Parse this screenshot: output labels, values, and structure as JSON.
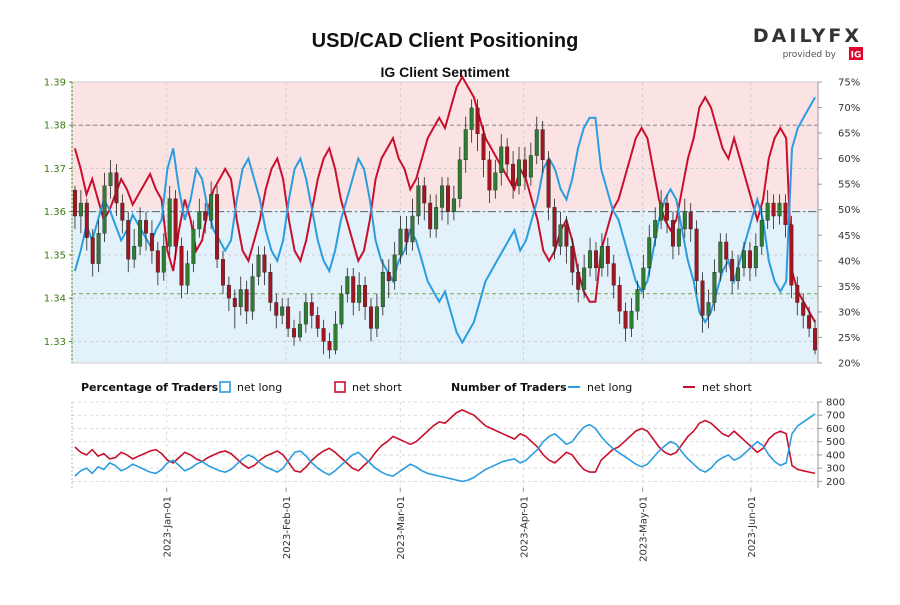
{
  "title": "USD/CAD Client Positioning",
  "subtitle": "IG Client Sentiment",
  "brand": {
    "name": "DAILYFX",
    "sub": "provided by",
    "ig": "IG",
    "color_accent": "#e4002b"
  },
  "colors": {
    "long": "#2a9de0",
    "short": "#c8102e",
    "up": "#2e7d32",
    "down": "#a31621",
    "wick": "#222222",
    "bg_short": "#fbe3e3",
    "bg_long": "#e3f1fb",
    "green_axis": "#4a8a1a"
  },
  "legend": {
    "pct_label": "Percentage of Traders",
    "num_label": "Number of Traders",
    "net_long": "net long",
    "net_short": "net short"
  },
  "chart_data": [
    {
      "type": "candlestick+line",
      "name": "price-and-percentage",
      "price_axis": {
        "ylim": [
          1.325,
          1.39
        ],
        "ticks": [
          1.33,
          1.34,
          1.35,
          1.36,
          1.37,
          1.38,
          1.39
        ]
      },
      "pct_axis": {
        "ylim": [
          20,
          75
        ],
        "ticks": [
          "20%",
          "25%",
          "30%",
          "35%",
          "40%",
          "45%",
          "50%",
          "55%",
          "60%",
          "65%",
          "70%",
          "75%"
        ]
      },
      "reference_lines": [
        1.38,
        1.36,
        1.341
      ],
      "x_ticks": [
        "2023-Jan-01",
        "2023-Feb-01",
        "2023-Mar-01",
        "2023-Apr-01",
        "2023-May-01",
        "2023-Jun-01"
      ],
      "candles": [
        [
          1.365,
          1.359,
          1.366,
          1.356
        ],
        [
          1.359,
          1.362,
          1.365,
          1.355
        ],
        [
          1.362,
          1.354,
          1.363,
          1.351
        ],
        [
          1.354,
          1.348,
          1.356,
          1.345
        ],
        [
          1.348,
          1.355,
          1.358,
          1.346
        ],
        [
          1.355,
          1.366,
          1.369,
          1.353
        ],
        [
          1.366,
          1.369,
          1.372,
          1.363
        ],
        [
          1.369,
          1.362,
          1.371,
          1.359
        ],
        [
          1.362,
          1.358,
          1.364,
          1.355
        ],
        [
          1.358,
          1.349,
          1.36,
          1.346
        ],
        [
          1.349,
          1.352,
          1.356,
          1.347
        ],
        [
          1.352,
          1.358,
          1.361,
          1.35
        ],
        [
          1.358,
          1.355,
          1.36,
          1.351
        ],
        [
          1.355,
          1.351,
          1.358,
          1.348
        ],
        [
          1.351,
          1.346,
          1.353,
          1.343
        ],
        [
          1.346,
          1.352,
          1.355,
          1.344
        ],
        [
          1.352,
          1.363,
          1.366,
          1.35
        ],
        [
          1.363,
          1.352,
          1.365,
          1.349
        ],
        [
          1.352,
          1.343,
          1.354,
          1.34
        ],
        [
          1.343,
          1.348,
          1.351,
          1.341
        ],
        [
          1.348,
          1.356,
          1.358,
          1.346
        ],
        [
          1.356,
          1.36,
          1.363,
          1.354
        ],
        [
          1.36,
          1.358,
          1.362,
          1.355
        ],
        [
          1.358,
          1.364,
          1.367,
          1.356
        ],
        [
          1.364,
          1.349,
          1.366,
          1.347
        ],
        [
          1.349,
          1.343,
          1.351,
          1.341
        ],
        [
          1.343,
          1.34,
          1.345,
          1.337
        ],
        [
          1.34,
          1.338,
          1.342,
          1.333
        ],
        [
          1.338,
          1.342,
          1.345,
          1.336
        ],
        [
          1.342,
          1.337,
          1.344,
          1.334
        ],
        [
          1.337,
          1.345,
          1.348,
          1.335
        ],
        [
          1.345,
          1.35,
          1.352,
          1.343
        ],
        [
          1.35,
          1.346,
          1.352,
          1.343
        ],
        [
          1.346,
          1.339,
          1.348,
          1.337
        ],
        [
          1.339,
          1.336,
          1.341,
          1.333
        ],
        [
          1.336,
          1.338,
          1.34,
          1.334
        ],
        [
          1.338,
          1.333,
          1.34,
          1.331
        ],
        [
          1.333,
          1.331,
          1.335,
          1.329
        ],
        [
          1.331,
          1.334,
          1.337,
          1.33
        ],
        [
          1.334,
          1.339,
          1.341,
          1.332
        ],
        [
          1.339,
          1.336,
          1.341,
          1.333
        ],
        [
          1.336,
          1.333,
          1.338,
          1.331
        ],
        [
          1.333,
          1.33,
          1.335,
          1.327
        ],
        [
          1.33,
          1.328,
          1.332,
          1.326
        ],
        [
          1.328,
          1.334,
          1.337,
          1.327
        ],
        [
          1.334,
          1.341,
          1.343,
          1.333
        ],
        [
          1.341,
          1.345,
          1.347,
          1.339
        ],
        [
          1.345,
          1.339,
          1.347,
          1.336
        ],
        [
          1.339,
          1.343,
          1.346,
          1.337
        ],
        [
          1.343,
          1.338,
          1.345,
          1.335
        ],
        [
          1.338,
          1.333,
          1.34,
          1.33
        ],
        [
          1.333,
          1.338,
          1.341,
          1.331
        ],
        [
          1.338,
          1.346,
          1.349,
          1.336
        ],
        [
          1.346,
          1.344,
          1.349,
          1.34
        ],
        [
          1.344,
          1.35,
          1.353,
          1.342
        ],
        [
          1.35,
          1.356,
          1.359,
          1.348
        ],
        [
          1.356,
          1.353,
          1.359,
          1.35
        ],
        [
          1.353,
          1.359,
          1.363,
          1.351
        ],
        [
          1.359,
          1.366,
          1.368,
          1.357
        ],
        [
          1.366,
          1.362,
          1.368,
          1.358
        ],
        [
          1.362,
          1.356,
          1.364,
          1.354
        ],
        [
          1.356,
          1.361,
          1.364,
          1.354
        ],
        [
          1.361,
          1.366,
          1.368,
          1.358
        ],
        [
          1.366,
          1.36,
          1.368,
          1.357
        ],
        [
          1.36,
          1.363,
          1.366,
          1.358
        ],
        [
          1.363,
          1.372,
          1.375,
          1.361
        ],
        [
          1.372,
          1.379,
          1.382,
          1.369
        ],
        [
          1.379,
          1.384,
          1.386,
          1.376
        ],
        [
          1.384,
          1.378,
          1.386,
          1.374
        ],
        [
          1.378,
          1.372,
          1.38,
          1.368
        ],
        [
          1.372,
          1.365,
          1.374,
          1.362
        ],
        [
          1.365,
          1.369,
          1.372,
          1.363
        ],
        [
          1.369,
          1.375,
          1.378,
          1.366
        ],
        [
          1.375,
          1.371,
          1.377,
          1.368
        ],
        [
          1.371,
          1.366,
          1.374,
          1.363
        ],
        [
          1.366,
          1.372,
          1.375,
          1.364
        ],
        [
          1.372,
          1.368,
          1.375,
          1.365
        ],
        [
          1.368,
          1.373,
          1.376,
          1.366
        ],
        [
          1.373,
          1.379,
          1.382,
          1.371
        ],
        [
          1.379,
          1.372,
          1.381,
          1.369
        ],
        [
          1.372,
          1.361,
          1.374,
          1.358
        ],
        [
          1.361,
          1.352,
          1.363,
          1.349
        ],
        [
          1.352,
          1.357,
          1.36,
          1.35
        ],
        [
          1.357,
          1.352,
          1.359,
          1.348
        ],
        [
          1.352,
          1.346,
          1.354,
          1.343
        ],
        [
          1.346,
          1.342,
          1.348,
          1.339
        ],
        [
          1.342,
          1.347,
          1.35,
          1.34
        ],
        [
          1.347,
          1.351,
          1.354,
          1.345
        ],
        [
          1.351,
          1.347,
          1.353,
          1.344
        ],
        [
          1.347,
          1.352,
          1.355,
          1.345
        ],
        [
          1.352,
          1.348,
          1.354,
          1.345
        ],
        [
          1.348,
          1.343,
          1.35,
          1.34
        ],
        [
          1.343,
          1.337,
          1.345,
          1.334
        ],
        [
          1.337,
          1.333,
          1.339,
          1.33
        ],
        [
          1.333,
          1.337,
          1.34,
          1.331
        ],
        [
          1.337,
          1.342,
          1.344,
          1.335
        ],
        [
          1.342,
          1.347,
          1.35,
          1.34
        ],
        [
          1.347,
          1.354,
          1.357,
          1.345
        ],
        [
          1.354,
          1.358,
          1.361,
          1.352
        ],
        [
          1.358,
          1.362,
          1.365,
          1.356
        ],
        [
          1.362,
          1.358,
          1.364,
          1.355
        ],
        [
          1.358,
          1.352,
          1.36,
          1.349
        ],
        [
          1.352,
          1.356,
          1.359,
          1.35
        ],
        [
          1.356,
          1.36,
          1.363,
          1.354
        ],
        [
          1.36,
          1.356,
          1.362,
          1.353
        ],
        [
          1.356,
          1.344,
          1.358,
          1.341
        ],
        [
          1.344,
          1.336,
          1.346,
          1.332
        ],
        [
          1.336,
          1.339,
          1.342,
          1.333
        ],
        [
          1.339,
          1.346,
          1.349,
          1.337
        ],
        [
          1.346,
          1.353,
          1.355,
          1.344
        ],
        [
          1.353,
          1.349,
          1.355,
          1.346
        ],
        [
          1.349,
          1.344,
          1.351,
          1.341
        ],
        [
          1.344,
          1.347,
          1.35,
          1.342
        ],
        [
          1.347,
          1.351,
          1.353,
          1.345
        ],
        [
          1.351,
          1.347,
          1.353,
          1.344
        ],
        [
          1.347,
          1.352,
          1.355,
          1.345
        ],
        [
          1.352,
          1.358,
          1.361,
          1.35
        ],
        [
          1.358,
          1.362,
          1.365,
          1.356
        ],
        [
          1.362,
          1.359,
          1.364,
          1.356
        ],
        [
          1.359,
          1.362,
          1.364,
          1.357
        ],
        [
          1.362,
          1.357,
          1.364,
          1.354
        ],
        [
          1.357,
          1.343,
          1.359,
          1.34
        ],
        [
          1.343,
          1.339,
          1.345,
          1.336
        ],
        [
          1.339,
          1.336,
          1.341,
          1.333
        ],
        [
          1.336,
          1.333,
          1.338,
          1.331
        ],
        [
          1.333,
          1.328,
          1.335,
          1.327
        ]
      ],
      "pct_net_long": [
        38,
        42,
        47,
        44,
        48,
        52,
        50,
        47,
        44,
        46,
        49,
        47,
        45,
        43,
        46,
        48,
        58,
        62,
        54,
        48,
        52,
        58,
        56,
        50,
        46,
        44,
        42,
        44,
        52,
        58,
        60,
        56,
        52,
        46,
        42,
        40,
        44,
        52,
        58,
        60,
        56,
        50,
        44,
        40,
        38,
        42,
        48,
        52,
        56,
        60,
        58,
        52,
        44,
        40,
        38,
        36,
        40,
        42,
        46,
        44,
        40,
        36,
        34,
        32,
        34,
        30,
        26,
        24,
        26,
        28,
        32,
        36,
        38,
        40,
        42,
        44,
        46,
        42,
        44,
        48,
        52,
        58,
        60,
        58,
        54,
        52,
        56,
        62,
        66,
        68,
        68,
        58,
        54,
        50,
        48,
        44,
        40,
        36,
        34,
        36,
        42,
        48,
        52,
        54,
        52,
        46,
        40,
        36,
        30,
        28,
        30,
        34,
        38,
        40,
        36,
        40,
        44,
        48,
        52,
        48,
        40,
        36,
        34,
        36,
        62,
        66,
        68,
        70,
        72
      ],
      "pct_net_short": [
        62,
        58,
        53,
        56,
        52,
        48,
        50,
        53,
        56,
        54,
        51,
        53,
        55,
        57,
        54,
        52,
        42,
        38,
        46,
        52,
        48,
        42,
        44,
        50,
        54,
        56,
        58,
        56,
        48,
        42,
        40,
        44,
        48,
        54,
        58,
        60,
        56,
        48,
        42,
        40,
        44,
        50,
        56,
        60,
        62,
        58,
        52,
        48,
        44,
        40,
        42,
        48,
        56,
        60,
        62,
        64,
        60,
        58,
        54,
        56,
        60,
        64,
        66,
        68,
        66,
        70,
        74,
        76,
        74,
        72,
        68,
        64,
        62,
        60,
        58,
        56,
        54,
        58,
        56,
        52,
        48,
        42,
        40,
        42,
        46,
        48,
        44,
        38,
        34,
        32,
        32,
        42,
        46,
        50,
        52,
        56,
        60,
        64,
        66,
        64,
        58,
        52,
        48,
        46,
        48,
        54,
        60,
        64,
        70,
        72,
        70,
        66,
        62,
        60,
        64,
        60,
        56,
        52,
        48,
        52,
        60,
        64,
        66,
        64,
        38,
        34,
        32,
        30,
        28
      ]
    },
    {
      "type": "line",
      "name": "number-of-traders",
      "ylim": [
        150,
        800
      ],
      "ticks": [
        200,
        300,
        400,
        500,
        600,
        700,
        800
      ],
      "net_long": [
        240,
        280,
        300,
        260,
        310,
        290,
        340,
        320,
        280,
        300,
        330,
        310,
        290,
        270,
        260,
        290,
        340,
        360,
        320,
        280,
        300,
        330,
        350,
        320,
        300,
        280,
        270,
        290,
        330,
        370,
        400,
        380,
        340,
        310,
        290,
        270,
        300,
        360,
        420,
        430,
        390,
        340,
        300,
        270,
        250,
        280,
        320,
        360,
        400,
        420,
        380,
        340,
        300,
        270,
        250,
        240,
        270,
        300,
        330,
        310,
        280,
        260,
        250,
        240,
        230,
        220,
        210,
        200,
        210,
        230,
        260,
        290,
        310,
        330,
        350,
        360,
        370,
        340,
        360,
        400,
        440,
        500,
        540,
        560,
        520,
        480,
        500,
        560,
        610,
        630,
        600,
        540,
        490,
        450,
        420,
        390,
        360,
        330,
        310,
        330,
        380,
        430,
        470,
        500,
        480,
        420,
        370,
        330,
        290,
        270,
        300,
        350,
        380,
        400,
        360,
        380,
        420,
        460,
        500,
        470,
        400,
        350,
        320,
        340,
        560,
        620,
        650,
        680,
        710
      ],
      "net_short": [
        460,
        420,
        400,
        440,
        390,
        410,
        370,
        380,
        420,
        400,
        370,
        390,
        410,
        430,
        440,
        410,
        360,
        340,
        380,
        420,
        400,
        370,
        350,
        380,
        400,
        420,
        430,
        410,
        370,
        330,
        300,
        320,
        360,
        390,
        410,
        430,
        400,
        340,
        280,
        270,
        310,
        360,
        400,
        430,
        450,
        420,
        380,
        340,
        300,
        280,
        320,
        360,
        420,
        470,
        500,
        540,
        520,
        500,
        480,
        500,
        540,
        580,
        620,
        650,
        640,
        680,
        720,
        740,
        720,
        700,
        660,
        620,
        600,
        580,
        560,
        540,
        520,
        560,
        540,
        500,
        460,
        400,
        360,
        340,
        380,
        420,
        400,
        340,
        290,
        270,
        270,
        360,
        400,
        440,
        460,
        500,
        540,
        580,
        600,
        580,
        520,
        460,
        420,
        400,
        420,
        480,
        540,
        580,
        640,
        660,
        640,
        600,
        560,
        540,
        580,
        540,
        500,
        460,
        420,
        450,
        520,
        560,
        580,
        560,
        320,
        290,
        280,
        270,
        260
      ]
    }
  ]
}
